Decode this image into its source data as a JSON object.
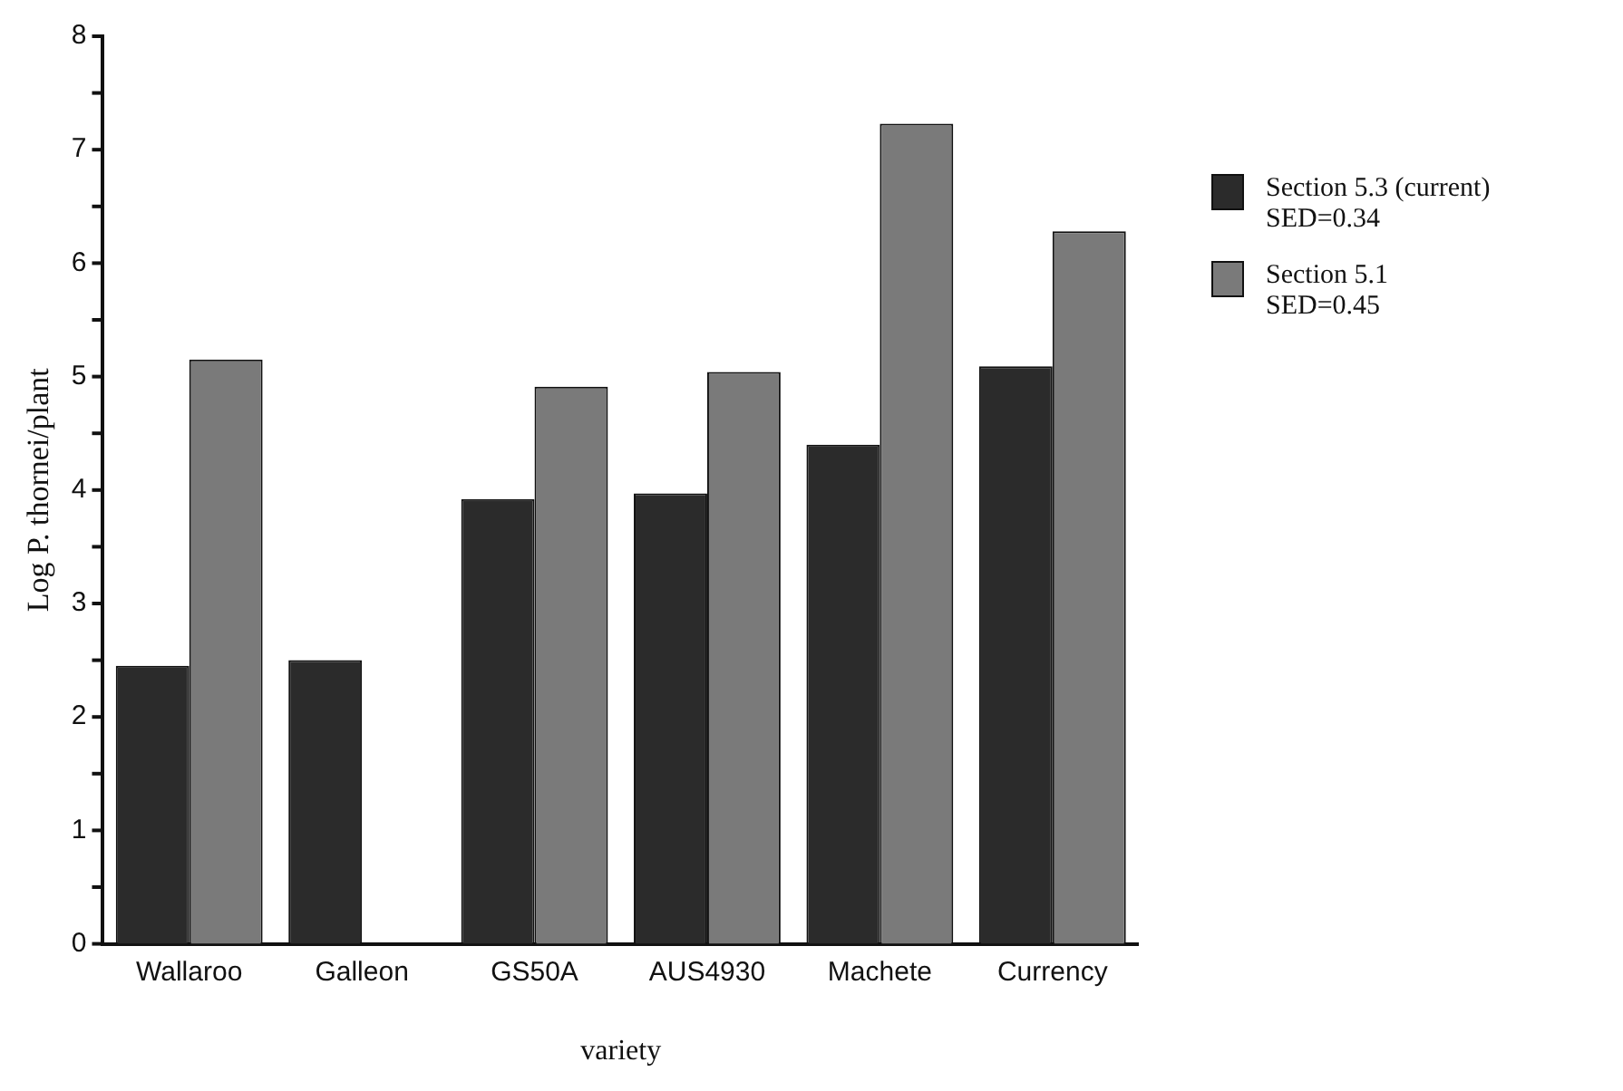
{
  "chart_data": {
    "type": "bar",
    "xlabel": "variety",
    "ylabel": "Log P. thornei/plant",
    "categories": [
      "Wallaroo",
      "Galleon",
      "GS50A",
      "AUS4930",
      "Machete",
      "Currency"
    ],
    "series": [
      {
        "name": "Section 5.3 (current)",
        "color": "#2b2b2b",
        "values": [
          2.45,
          2.5,
          3.92,
          3.97,
          4.4,
          5.09
        ]
      },
      {
        "name": "Section 5.1",
        "color": "#7a7a7a",
        "values": [
          5.15,
          null,
          4.91,
          5.04,
          7.23,
          6.28
        ]
      }
    ],
    "annotations": [
      "SED=0.34",
      "SED=0.45"
    ],
    "ylim": [
      0,
      8
    ],
    "yticks": [
      0,
      {
        "value": 0.5,
        "label": null
      },
      1,
      {
        "value": 1.5,
        "label": null
      },
      2,
      {
        "value": 2.5,
        "label": null
      },
      3,
      {
        "value": 3.5,
        "label": null
      },
      4,
      {
        "value": 4.5,
        "label": null
      },
      5,
      {
        "value": 5.5,
        "label": null
      },
      6,
      {
        "value": 6.5,
        "label": null
      },
      7,
      {
        "value": 7.5,
        "label": null
      },
      8
    ],
    "grid": false,
    "legend": "right"
  }
}
